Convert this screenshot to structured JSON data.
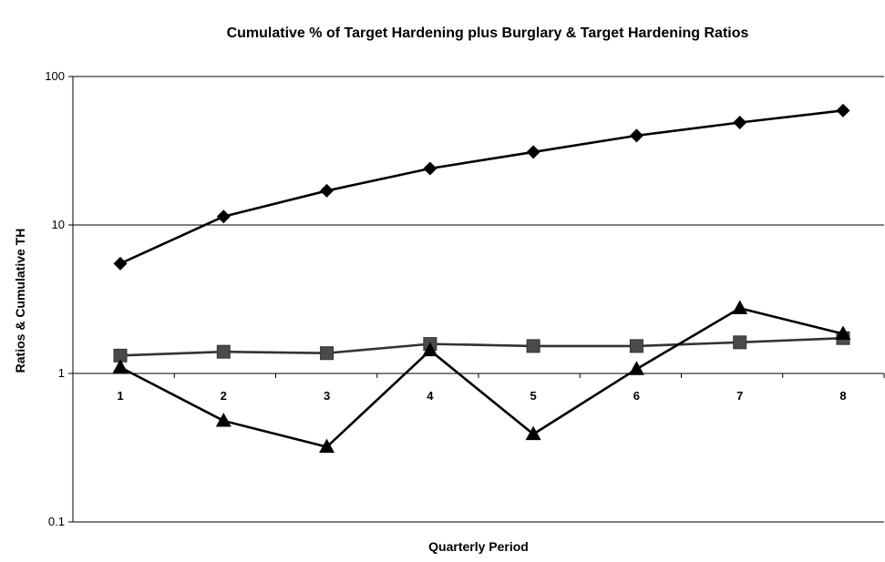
{
  "chart_data": {
    "type": "line",
    "title": "Cumulative % of Target Hardening plus Burglary & Target Hardening Ratios",
    "xlabel": "Quarterly Period",
    "ylabel": "Ratios & Cumulative TH",
    "y_scale": "log",
    "ylim": [
      0.1,
      100
    ],
    "y_ticks": [
      "0.1",
      "1",
      "10",
      "100"
    ],
    "categories": [
      "1",
      "2",
      "3",
      "4",
      "5",
      "6",
      "7",
      "8"
    ],
    "grid": "horizontal",
    "legend": "none",
    "series": [
      {
        "marker": "diamond",
        "color": "#000000",
        "values": [
          5.5,
          11.4,
          17.0,
          24.0,
          31.0,
          40.0,
          49.0,
          59.0
        ]
      },
      {
        "marker": "square",
        "color": "#333333",
        "values": [
          1.32,
          1.4,
          1.37,
          1.58,
          1.53,
          1.53,
          1.62,
          1.73
        ]
      },
      {
        "marker": "triangle",
        "color": "#000000",
        "values": [
          1.1,
          0.48,
          0.32,
          1.43,
          0.39,
          1.07,
          2.75,
          1.85
        ]
      }
    ]
  }
}
